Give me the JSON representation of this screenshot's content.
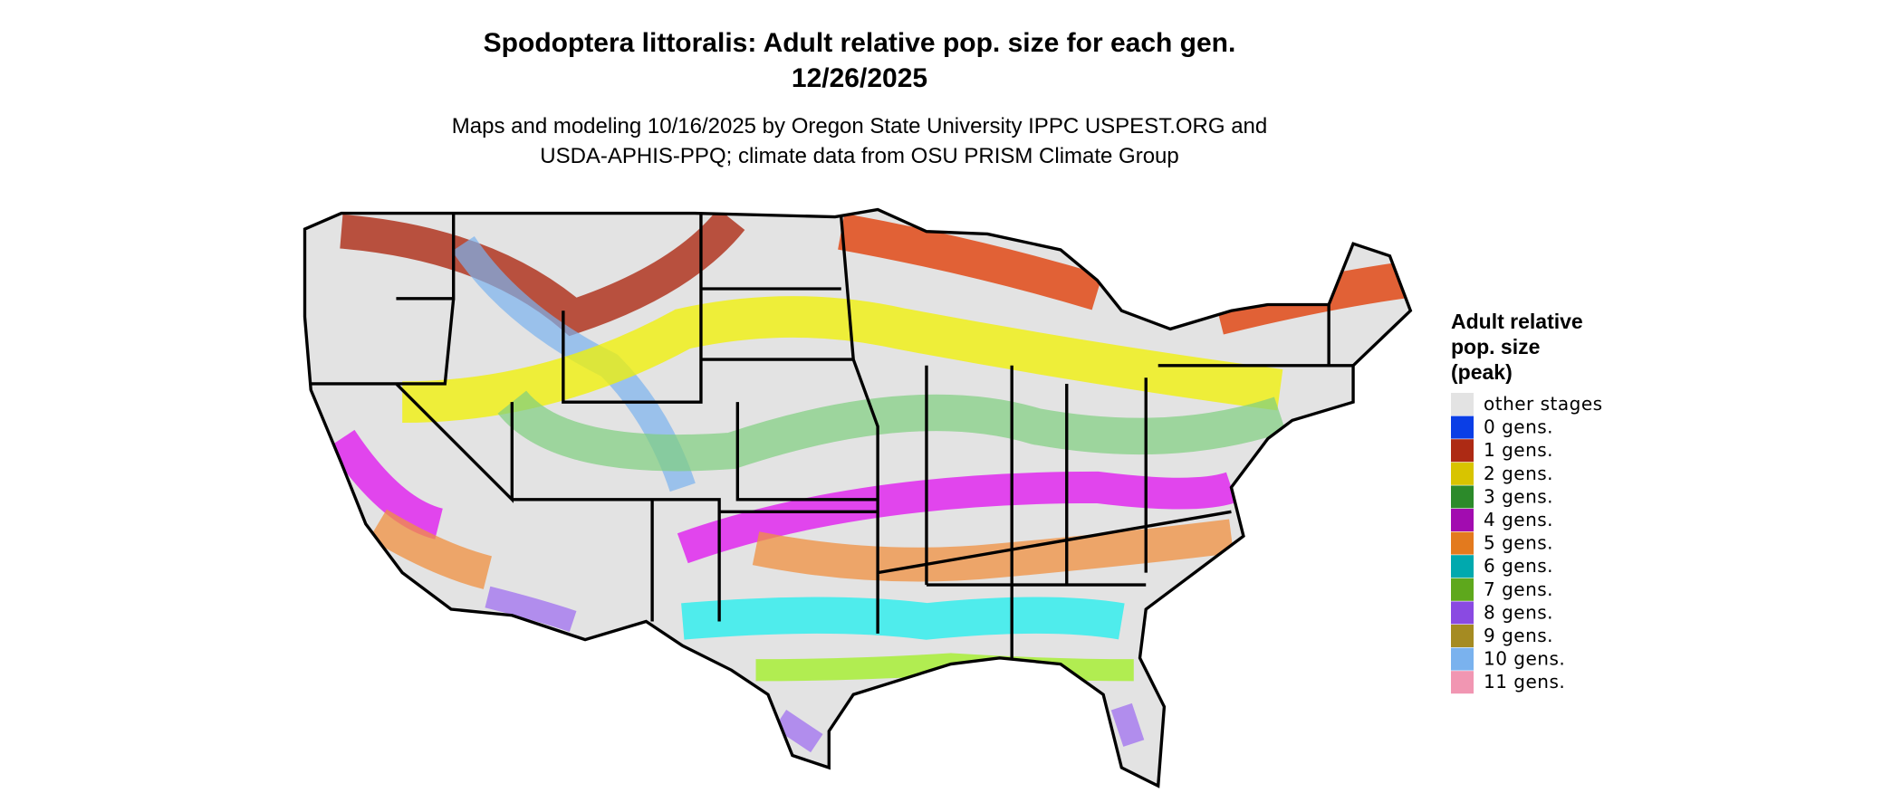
{
  "header": {
    "title_lines": [
      "Spodoptera littoralis: Adult relative pop. size for each gen.",
      "12/26/2025"
    ],
    "subtitle_lines": [
      "Maps and modeling 10/16/2025 by Oregon State University IPPC USPEST.ORG and",
      "USDA-APHIS-PPQ; climate data from OSU PRISM Climate Group"
    ]
  },
  "legend": {
    "title_lines": [
      "Adult relative",
      "pop. size",
      "(peak)"
    ],
    "items": [
      {
        "label": "other stages",
        "color": "#e3e3e3"
      },
      {
        "label": "0 gens.",
        "color": "#0a3ee6"
      },
      {
        "label": "1 gens.",
        "color": "#ad2a14"
      },
      {
        "label": "2 gens.",
        "color": "#d8c400"
      },
      {
        "label": "3 gens.",
        "color": "#2c8a2a"
      },
      {
        "label": "4 gens.",
        "color": "#a20cb0"
      },
      {
        "label": "5 gens.",
        "color": "#e37a1e"
      },
      {
        "label": "6 gens.",
        "color": "#00a9ae"
      },
      {
        "label": "7 gens.",
        "color": "#5ea81c"
      },
      {
        "label": "8 gens.",
        "color": "#8a4ae2"
      },
      {
        "label": "9 gens.",
        "color": "#a58b22"
      },
      {
        "label": "10 gens.",
        "color": "#7ab2ee"
      },
      {
        "label": "11 gens.",
        "color": "#f196b2"
      }
    ]
  }
}
